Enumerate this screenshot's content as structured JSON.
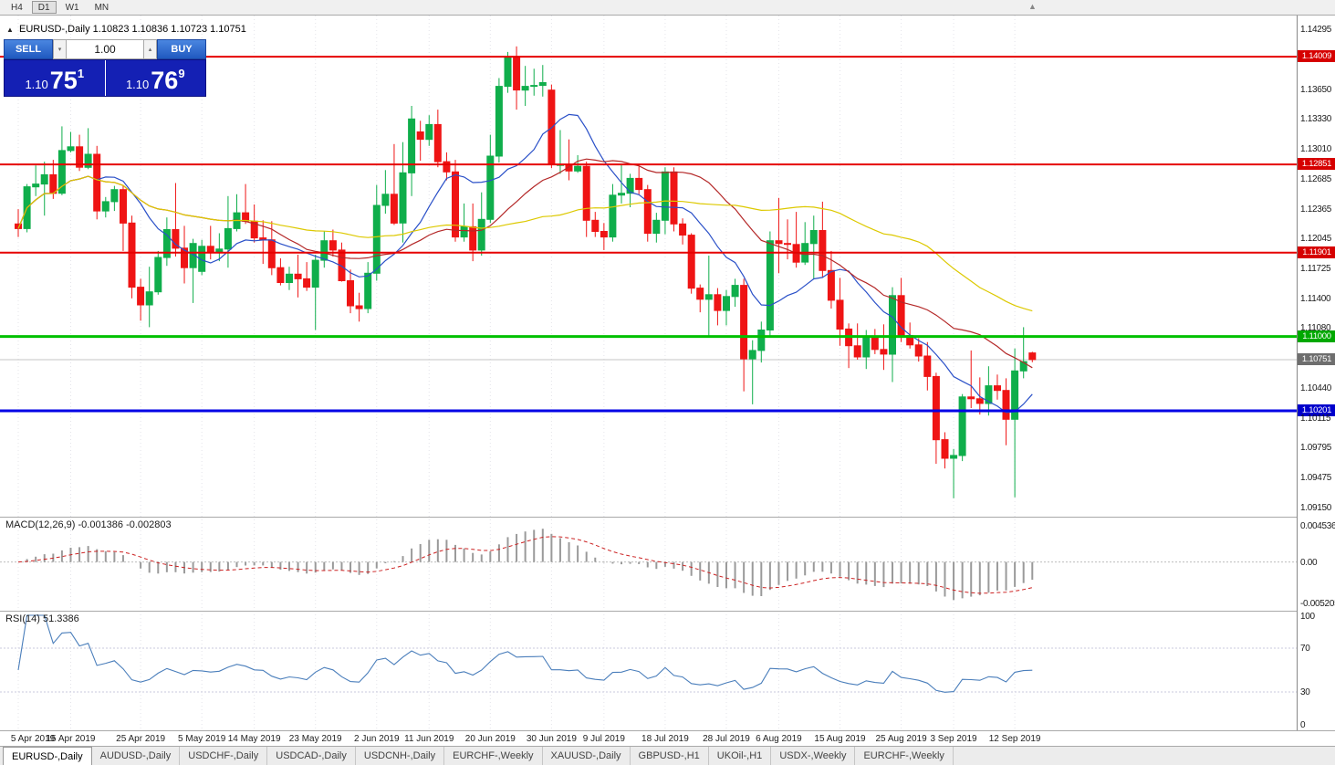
{
  "toolbar": {
    "timeframes": [
      {
        "label": "H4",
        "active": false
      },
      {
        "label": "D1",
        "active": true
      },
      {
        "label": "W1",
        "active": false
      },
      {
        "label": "MN",
        "active": false
      }
    ]
  },
  "icons": {
    "collapse": "▲",
    "spinner_up": "▴",
    "spinner_down": "▾",
    "chart_shift": "▲"
  },
  "chart": {
    "symbol": "EURUSD-,Daily",
    "ohlc": "1.10823 1.10836 1.10723 1.10751"
  },
  "trade_panel": {
    "sell_label": "SELL",
    "buy_label": "BUY",
    "volume": "1.00",
    "sell_price": {
      "prefix": "1.10",
      "big": "75",
      "sup": "1"
    },
    "buy_price": {
      "prefix": "1.10",
      "big": "76",
      "sup": "9"
    }
  },
  "price_axis": {
    "labels": [
      {
        "text": "1.14295",
        "style": "plain"
      },
      {
        "text": "1.14009",
        "style": "red"
      },
      {
        "text": "1.13650",
        "style": "plain"
      },
      {
        "text": "1.13330",
        "style": "plain"
      },
      {
        "text": "1.13010",
        "style": "plain"
      },
      {
        "text": "1.12851",
        "style": "red"
      },
      {
        "text": "1.12685",
        "style": "plain"
      },
      {
        "text": "1.12365",
        "style": "plain"
      },
      {
        "text": "1.12045",
        "style": "plain"
      },
      {
        "text": "1.11901",
        "style": "red"
      },
      {
        "text": "1.11725",
        "style": "plain"
      },
      {
        "text": "1.11400",
        "style": "plain"
      },
      {
        "text": "1.11080",
        "style": "plain"
      },
      {
        "text": "1.11000",
        "style": "green"
      },
      {
        "text": "1.10751",
        "style": "grey"
      },
      {
        "text": "1.10440",
        "style": "plain"
      },
      {
        "text": "1.10201",
        "style": "blue"
      },
      {
        "text": "1.10115",
        "style": "plain"
      },
      {
        "text": "1.09795",
        "style": "plain"
      },
      {
        "text": "1.09475",
        "style": "plain"
      },
      {
        "text": "1.09150",
        "style": "plain"
      }
    ]
  },
  "indicators": {
    "macd": {
      "label": "MACD(12,26,9)",
      "value_main": "-0.001386",
      "value_signal": "-0.002803",
      "axis": [
        "0.004536",
        "0.00",
        "-0.005205"
      ],
      "params": {
        "fast": 12,
        "slow": 26,
        "signal": 9
      }
    },
    "rsi": {
      "label": "RSI(14)",
      "value": "51.3386",
      "axis": [
        100,
        70,
        30,
        0
      ],
      "levels": [
        70,
        30
      ],
      "period": 14
    }
  },
  "chart_data": {
    "type": "candlestick",
    "symbol": "EURUSD",
    "timeframe": "Daily",
    "y_range": [
      1.0915,
      1.14295
    ],
    "current_price": 1.10751,
    "current_bar": {
      "open": 1.10823,
      "high": 1.10836,
      "low": 1.10723,
      "close": 1.10751
    },
    "hlines": [
      {
        "price": 1.14009,
        "color": "#e60000",
        "width": 2,
        "label": "1.14009"
      },
      {
        "price": 1.12851,
        "color": "#e60000",
        "width": 2,
        "label": "1.12851"
      },
      {
        "price": 1.11901,
        "color": "#e60000",
        "width": 2,
        "label": "1.11901"
      },
      {
        "price": 1.11,
        "color": "#00c000",
        "width": 3,
        "label": "1.11000"
      },
      {
        "price": 1.10201,
        "color": "#0000e6",
        "width": 3,
        "label": "1.10201"
      }
    ],
    "moving_averages": [
      {
        "period": 10,
        "color": "#2a50c8"
      },
      {
        "period": 25,
        "color": "#b42828"
      },
      {
        "period": 50,
        "color": "#ddc900"
      }
    ],
    "date_ticks": [
      {
        "i": 0,
        "label": "5 Apr 2019"
      },
      {
        "i": 6,
        "label": "15 Apr 2019"
      },
      {
        "i": 14,
        "label": "25 Apr 2019"
      },
      {
        "i": 21,
        "label": "5 May 2019"
      },
      {
        "i": 27,
        "label": "14 May 2019"
      },
      {
        "i": 34,
        "label": "23 May 2019"
      },
      {
        "i": 41,
        "label": "2 Jun 2019"
      },
      {
        "i": 47,
        "label": "11 Jun 2019"
      },
      {
        "i": 54,
        "label": "20 Jun 2019"
      },
      {
        "i": 61,
        "label": "30 Jun 2019"
      },
      {
        "i": 67,
        "label": "9 Jul 2019"
      },
      {
        "i": 74,
        "label": "18 Jul 2019"
      },
      {
        "i": 81,
        "label": "28 Jul 2019"
      },
      {
        "i": 87,
        "label": "6 Aug 2019"
      },
      {
        "i": 94,
        "label": "15 Aug 2019"
      },
      {
        "i": 101,
        "label": "25 Aug 2019"
      },
      {
        "i": 107,
        "label": "3 Sep 2019"
      },
      {
        "i": 114,
        "label": "12 Sep 2019"
      }
    ],
    "candles": [
      [
        1.1221,
        1.1237,
        1.1207,
        1.1216
      ],
      [
        1.1216,
        1.1264,
        1.1212,
        1.1261
      ],
      [
        1.1261,
        1.1284,
        1.1251,
        1.1264
      ],
      [
        1.1264,
        1.1288,
        1.123,
        1.1274
      ],
      [
        1.1274,
        1.129,
        1.1248,
        1.1254
      ],
      [
        1.1254,
        1.1326,
        1.1252,
        1.13
      ],
      [
        1.13,
        1.132,
        1.1298,
        1.1304
      ],
      [
        1.1304,
        1.1317,
        1.1278,
        1.1282
      ],
      [
        1.1282,
        1.1324,
        1.128,
        1.1296
      ],
      [
        1.1296,
        1.1305,
        1.1226,
        1.1235
      ],
      [
        1.1235,
        1.125,
        1.1228,
        1.1245
      ],
      [
        1.1245,
        1.1262,
        1.1235,
        1.1258
      ],
      [
        1.1258,
        1.1263,
        1.1192,
        1.1222
      ],
      [
        1.1222,
        1.123,
        1.1141,
        1.1153
      ],
      [
        1.1153,
        1.1162,
        1.1117,
        1.1134
      ],
      [
        1.1134,
        1.1175,
        1.111,
        1.1148
      ],
      [
        1.1148,
        1.1192,
        1.1145,
        1.1185
      ],
      [
        1.1185,
        1.1228,
        1.1176,
        1.1215
      ],
      [
        1.1215,
        1.1265,
        1.1186,
        1.1195
      ],
      [
        1.1195,
        1.1219,
        1.1157,
        1.1174
      ],
      [
        1.1174,
        1.1205,
        1.1136,
        1.12
      ],
      [
        1.117,
        1.1204,
        1.1166,
        1.1197
      ],
      [
        1.1197,
        1.1219,
        1.1183,
        1.119
      ],
      [
        1.119,
        1.1211,
        1.1181,
        1.1194
      ],
      [
        1.1194,
        1.1251,
        1.1174,
        1.1216
      ],
      [
        1.1216,
        1.1253,
        1.1213,
        1.1233
      ],
      [
        1.1233,
        1.1264,
        1.1221,
        1.1224
      ],
      [
        1.1224,
        1.1242,
        1.1201,
        1.1206
      ],
      [
        1.1206,
        1.1225,
        1.1178,
        1.1204
      ],
      [
        1.1204,
        1.1224,
        1.1166,
        1.1174
      ],
      [
        1.1174,
        1.1184,
        1.1155,
        1.1158
      ],
      [
        1.1158,
        1.1175,
        1.115,
        1.1167
      ],
      [
        1.1167,
        1.1188,
        1.1142,
        1.1162
      ],
      [
        1.1162,
        1.118,
        1.1149,
        1.1153
      ],
      [
        1.1153,
        1.1188,
        1.1107,
        1.1182
      ],
      [
        1.1182,
        1.1213,
        1.1174,
        1.1203
      ],
      [
        1.1203,
        1.1215,
        1.1186,
        1.1193
      ],
      [
        1.1193,
        1.1201,
        1.1159,
        1.116
      ],
      [
        1.116,
        1.1172,
        1.1125,
        1.1133
      ],
      [
        1.1133,
        1.1147,
        1.1116,
        1.113
      ],
      [
        1.113,
        1.118,
        1.1125,
        1.1168
      ],
      [
        1.1168,
        1.1263,
        1.116,
        1.1241
      ],
      [
        1.1241,
        1.1279,
        1.1232,
        1.1253
      ],
      [
        1.1253,
        1.1307,
        1.122,
        1.1222
      ],
      [
        1.1222,
        1.1309,
        1.1201,
        1.1276
      ],
      [
        1.1276,
        1.1348,
        1.1251,
        1.1334
      ],
      [
        1.132,
        1.1332,
        1.1289,
        1.1312
      ],
      [
        1.1312,
        1.1338,
        1.1305,
        1.1328
      ],
      [
        1.1328,
        1.1344,
        1.1282,
        1.1288
      ],
      [
        1.1288,
        1.1298,
        1.1268,
        1.1277
      ],
      [
        1.1277,
        1.129,
        1.1202,
        1.1207
      ],
      [
        1.1207,
        1.1243,
        1.1202,
        1.1218
      ],
      [
        1.1218,
        1.1243,
        1.1181,
        1.1193
      ],
      [
        1.1193,
        1.1255,
        1.1187,
        1.1226
      ],
      [
        1.1226,
        1.1317,
        1.1222,
        1.1294
      ],
      [
        1.1294,
        1.1378,
        1.1287,
        1.1369
      ],
      [
        1.1369,
        1.1406,
        1.1362,
        1.14
      ],
      [
        1.14,
        1.1412,
        1.1344,
        1.1365
      ],
      [
        1.1365,
        1.1391,
        1.1348,
        1.1369
      ],
      [
        1.1369,
        1.1388,
        1.1359,
        1.137
      ],
      [
        1.137,
        1.1392,
        1.1358,
        1.1373
      ],
      [
        1.1365,
        1.1371,
        1.1281,
        1.1285
      ],
      [
        1.1285,
        1.1322,
        1.1275,
        1.1285
      ],
      [
        1.1285,
        1.1312,
        1.1268,
        1.1278
      ],
      [
        1.1278,
        1.1295,
        1.1276,
        1.1283
      ],
      [
        1.1283,
        1.1288,
        1.1207,
        1.1225
      ],
      [
        1.1225,
        1.1234,
        1.1207,
        1.1213
      ],
      [
        1.1213,
        1.1222,
        1.1193,
        1.1207
      ],
      [
        1.1207,
        1.1264,
        1.1202,
        1.1252
      ],
      [
        1.1252,
        1.1285,
        1.1243,
        1.1254
      ],
      [
        1.1254,
        1.1275,
        1.1239,
        1.127
      ],
      [
        1.127,
        1.1283,
        1.1253,
        1.1258
      ],
      [
        1.1258,
        1.1263,
        1.1202,
        1.1211
      ],
      [
        1.1211,
        1.1233,
        1.1201,
        1.1225
      ],
      [
        1.1225,
        1.1282,
        1.121,
        1.1277
      ],
      [
        1.1277,
        1.1282,
        1.1213,
        1.1221
      ],
      [
        1.1221,
        1.1227,
        1.1199,
        1.1209
      ],
      [
        1.1209,
        1.1211,
        1.1146,
        1.1152
      ],
      [
        1.1152,
        1.1156,
        1.1126,
        1.114
      ],
      [
        1.114,
        1.1187,
        1.1101,
        1.1145
      ],
      [
        1.1145,
        1.1152,
        1.1112,
        1.1128
      ],
      [
        1.1128,
        1.115,
        1.1112,
        1.1143
      ],
      [
        1.1143,
        1.1162,
        1.1132,
        1.1155
      ],
      [
        1.1155,
        1.1162,
        1.1041,
        1.1076
      ],
      [
        1.1076,
        1.1096,
        1.1027,
        1.1085
      ],
      [
        1.1085,
        1.1116,
        1.1072,
        1.1107
      ],
      [
        1.1107,
        1.1213,
        1.1101,
        1.1203
      ],
      [
        1.1203,
        1.1249,
        1.1168,
        1.12
      ],
      [
        1.12,
        1.1226,
        1.1183,
        1.1199
      ],
      [
        1.1199,
        1.1234,
        1.1174,
        1.118
      ],
      [
        1.118,
        1.1223,
        1.1177,
        1.12
      ],
      [
        1.12,
        1.123,
        1.1162,
        1.1214
      ],
      [
        1.1214,
        1.1245,
        1.1163,
        1.1171
      ],
      [
        1.1171,
        1.1192,
        1.113,
        1.1139
      ],
      [
        1.1139,
        1.1163,
        1.109,
        1.1108
      ],
      [
        1.1108,
        1.1114,
        1.1066,
        1.109
      ],
      [
        1.109,
        1.1114,
        1.1075,
        1.1078
      ],
      [
        1.1078,
        1.1107,
        1.1065,
        1.1099
      ],
      [
        1.1099,
        1.1108,
        1.1081,
        1.1086
      ],
      [
        1.1086,
        1.1113,
        1.1064,
        1.1081
      ],
      [
        1.1081,
        1.1153,
        1.1051,
        1.1144
      ],
      [
        1.1144,
        1.1163,
        1.1094,
        1.1101
      ],
      [
        1.1101,
        1.1115,
        1.1087,
        1.1091
      ],
      [
        1.1091,
        1.1098,
        1.1073,
        1.1079
      ],
      [
        1.1079,
        1.1094,
        1.1042,
        1.1057
      ],
      [
        1.1057,
        1.1061,
        1.0963,
        1.0989
      ],
      [
        1.0989,
        1.0997,
        1.0958,
        1.0969
      ],
      [
        1.0969,
        1.0979,
        1.0926,
        1.0972
      ],
      [
        1.0972,
        1.1038,
        1.0966,
        1.1035
      ],
      [
        1.1035,
        1.1085,
        1.1023,
        1.1033
      ],
      [
        1.1033,
        1.1056,
        1.1016,
        1.1028
      ],
      [
        1.1028,
        1.1068,
        1.1015,
        1.1047
      ],
      [
        1.1047,
        1.1059,
        1.1032,
        1.1042
      ],
      [
        1.1042,
        1.1055,
        1.0983,
        1.1011
      ],
      [
        1.1011,
        1.1087,
        1.0927,
        1.1063
      ],
      [
        1.1063,
        1.111,
        1.1055,
        1.1073
      ],
      [
        1.10823,
        1.10836,
        1.10723,
        1.10751
      ]
    ]
  },
  "tabs": [
    {
      "label": "EURUSD-,Daily",
      "active": true
    },
    {
      "label": "AUDUSD-,Daily",
      "active": false
    },
    {
      "label": "USDCHF-,Daily",
      "active": false
    },
    {
      "label": "USDCAD-,Daily",
      "active": false
    },
    {
      "label": "USDCNH-,Daily",
      "active": false
    },
    {
      "label": "EURCHF-,Weekly",
      "active": false
    },
    {
      "label": "XAUUSD-,Daily",
      "active": false
    },
    {
      "label": "GBPUSD-,H1",
      "active": false
    },
    {
      "label": "UKOil-,H1",
      "active": false
    },
    {
      "label": "USDX-,Weekly",
      "active": false
    },
    {
      "label": "EURCHF-,Weekly",
      "active": false
    }
  ],
  "colors": {
    "bull": "#0fae4b",
    "bear": "#ef1414",
    "macd_bar": "#9a9a9a",
    "macd_signal": "#cc2222",
    "rsi_line": "#4a7ebb",
    "grid": "#e4e4ea",
    "current_price_line": "#c4c4c4"
  }
}
